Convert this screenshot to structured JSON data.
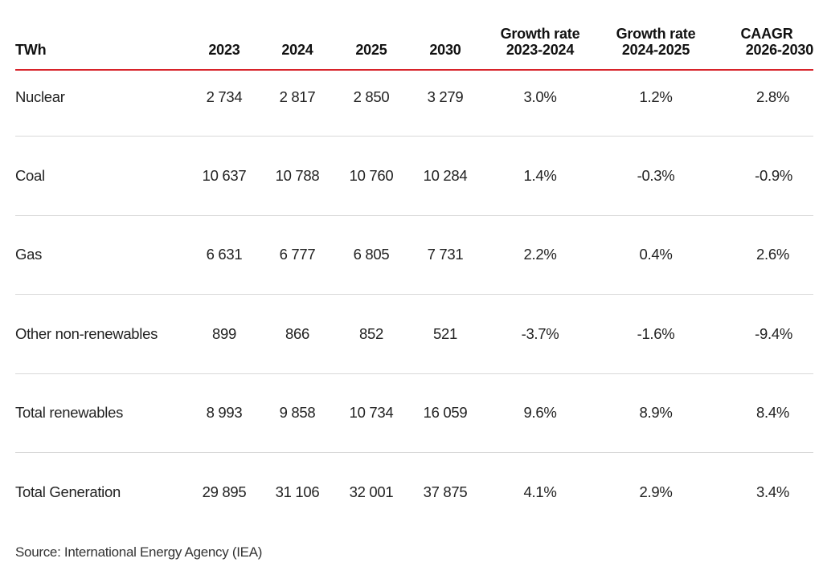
{
  "header": {
    "unit": "TWh",
    "col_2023": "2023",
    "col_2024": "2024",
    "col_2025": "2025",
    "col_2030": "2030",
    "growth1_line1": "Growth rate",
    "growth1_line2": "2023-2024",
    "growth2_line1": "Growth rate",
    "growth2_line2": "2024-2025",
    "caagr_line1": "CAAGR",
    "caagr_line2": "2026-2030"
  },
  "rows": [
    {
      "label": "Nuclear",
      "y2023": "2 734",
      "y2024": "2 817",
      "y2025": "2 850",
      "y2030": "3 279",
      "g1": "3.0%",
      "g2": "1.2%",
      "g3": "2.8%"
    },
    {
      "label": "Coal",
      "y2023": "10 637",
      "y2024": "10 788",
      "y2025": "10 760",
      "y2030": "10 284",
      "g1": "1.4%",
      "g2": "-0.3%",
      "g3": "-0.9%"
    },
    {
      "label": "Gas",
      "y2023": "6 631",
      "y2024": "6 777",
      "y2025": "6 805",
      "y2030": "7 731",
      "g1": "2.2%",
      "g2": "0.4%",
      "g3": "2.6%"
    },
    {
      "label": "Other non-renewables",
      "y2023": "899",
      "y2024": "866",
      "y2025": "852",
      "y2030": "521",
      "g1": "-3.7%",
      "g2": "-1.6%",
      "g3": "-9.4%"
    },
    {
      "label": "Total renewables",
      "y2023": "8 993",
      "y2024": "9 858",
      "y2025": "10 734",
      "y2030": "16 059",
      "g1": "9.6%",
      "g2": "8.9%",
      "g3": "8.4%"
    },
    {
      "label": "Total Generation",
      "y2023": "29 895",
      "y2024": "31 106",
      "y2025": "32 001",
      "y2030": "37 875",
      "g1": "4.1%",
      "g2": "2.9%",
      "g3": "3.4%"
    }
  ],
  "source": "Source: International Energy Agency (IEA)",
  "colors": {
    "header_rule": "#d8232a",
    "row_divider": "#d9d9d9",
    "text": "#1a1a1a"
  }
}
